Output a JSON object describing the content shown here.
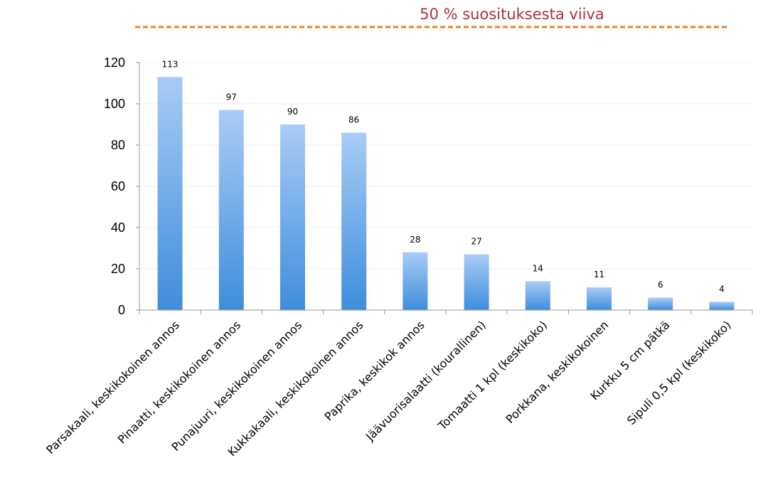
{
  "chart_data": {
    "type": "bar",
    "title": "",
    "xlabel": "",
    "ylabel": "",
    "ylim": [
      0,
      120
    ],
    "yticks": [
      0,
      20,
      40,
      60,
      80,
      100,
      120
    ],
    "grid": true,
    "legend": {
      "placement": "top",
      "label": "50 % suosituksesta viiva",
      "label_color": "#A8323A",
      "line_color": "#F07F1D"
    },
    "bar_color_top": "#A9CCF6",
    "bar_color_bottom": "#3E8DDC",
    "categories": [
      "Parsakaali, keskikokoinen annos",
      "Pinaatti, keskikokoinen annos",
      "Punajuuri, keskikokoinen annos",
      "Kukkakaali, keskikokoinen annos",
      "Paprika, keskikok annos",
      "Jäävuorisalaatti (kourallinen)",
      "Tomaatti 1 kpl (keskikoko)",
      "Porkkana, keskikokoinen",
      "Kurkku 5 cm pätkä",
      "Sipuli 0,5 kpl (keskikoko)"
    ],
    "values": [
      113,
      97,
      90,
      86,
      28,
      27,
      14,
      11,
      6,
      4
    ]
  }
}
